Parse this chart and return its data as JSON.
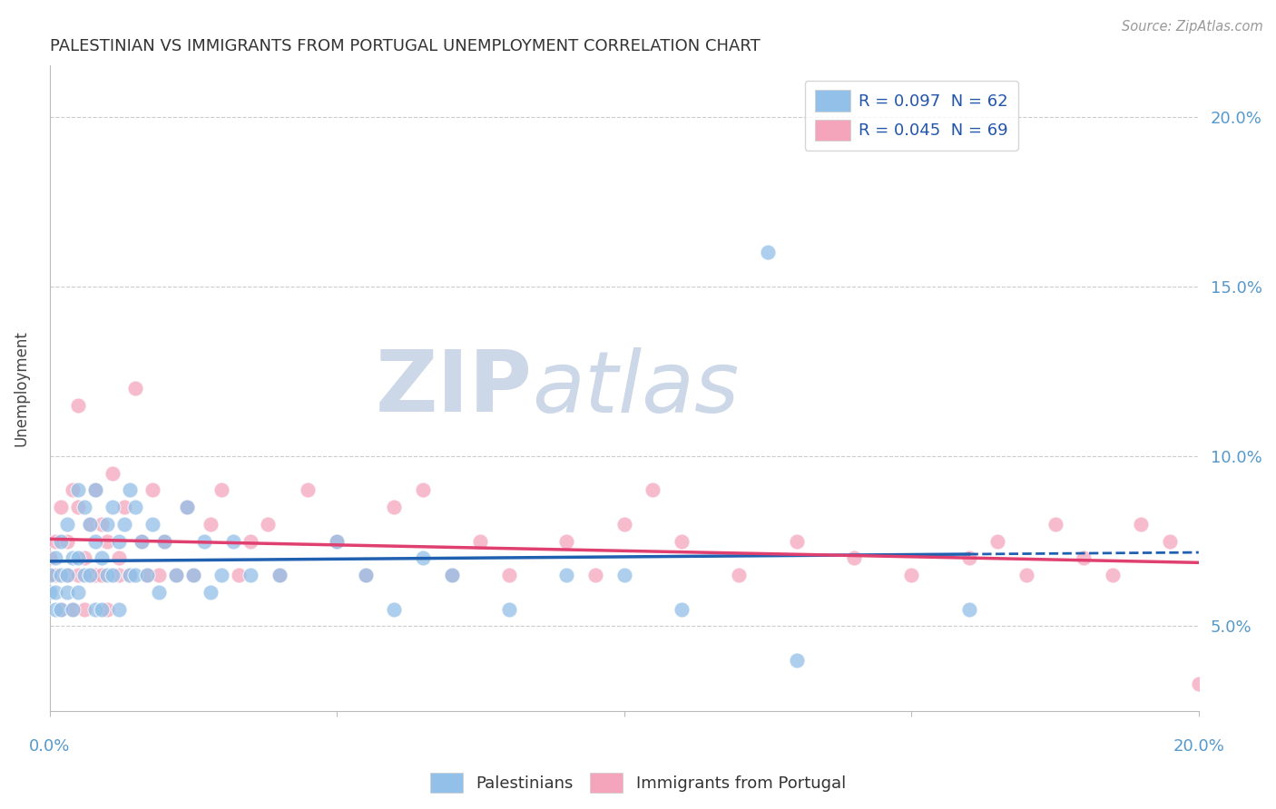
{
  "title": "PALESTINIAN VS IMMIGRANTS FROM PORTUGAL UNEMPLOYMENT CORRELATION CHART",
  "source_text": "Source: ZipAtlas.com",
  "ylabel": "Unemployment",
  "ytick_labels": [
    "5.0%",
    "10.0%",
    "15.0%",
    "20.0%"
  ],
  "ytick_values": [
    0.05,
    0.1,
    0.15,
    0.2
  ],
  "xlim": [
    0.0,
    0.2
  ],
  "ylim": [
    0.025,
    0.215
  ],
  "legend_entry1": "R = 0.097  N = 62",
  "legend_entry2": "R = 0.045  N = 69",
  "legend_color1": "#92c0e8",
  "legend_color2": "#f4a5bb",
  "scatter_color1": "#92c0e8",
  "scatter_color2": "#f4a5bb",
  "trend_color1": "#2060b0",
  "trend_color2": "#e04070",
  "watermark": "ZIPatlas",
  "watermark_color": "#ccd8e8",
  "background_color": "#ffffff",
  "grid_color": "#cccccc",
  "palestinians_x": [
    0.0,
    0.0,
    0.001,
    0.001,
    0.001,
    0.002,
    0.002,
    0.002,
    0.003,
    0.003,
    0.003,
    0.004,
    0.004,
    0.005,
    0.005,
    0.005,
    0.006,
    0.006,
    0.007,
    0.007,
    0.008,
    0.008,
    0.008,
    0.009,
    0.009,
    0.01,
    0.01,
    0.011,
    0.011,
    0.012,
    0.012,
    0.013,
    0.014,
    0.014,
    0.015,
    0.015,
    0.016,
    0.017,
    0.018,
    0.019,
    0.02,
    0.022,
    0.024,
    0.025,
    0.027,
    0.028,
    0.03,
    0.032,
    0.035,
    0.04,
    0.05,
    0.055,
    0.06,
    0.065,
    0.07,
    0.08,
    0.09,
    0.1,
    0.11,
    0.125,
    0.13,
    0.16
  ],
  "palestinians_y": [
    0.065,
    0.06,
    0.07,
    0.055,
    0.06,
    0.075,
    0.065,
    0.055,
    0.08,
    0.065,
    0.06,
    0.07,
    0.055,
    0.09,
    0.07,
    0.06,
    0.085,
    0.065,
    0.08,
    0.065,
    0.09,
    0.075,
    0.055,
    0.07,
    0.055,
    0.08,
    0.065,
    0.085,
    0.065,
    0.075,
    0.055,
    0.08,
    0.09,
    0.065,
    0.085,
    0.065,
    0.075,
    0.065,
    0.08,
    0.06,
    0.075,
    0.065,
    0.085,
    0.065,
    0.075,
    0.06,
    0.065,
    0.075,
    0.065,
    0.065,
    0.075,
    0.065,
    0.055,
    0.07,
    0.065,
    0.055,
    0.065,
    0.065,
    0.055,
    0.16,
    0.04,
    0.055
  ],
  "portugal_x": [
    0.0,
    0.0,
    0.001,
    0.001,
    0.002,
    0.002,
    0.003,
    0.003,
    0.004,
    0.004,
    0.005,
    0.005,
    0.005,
    0.006,
    0.006,
    0.007,
    0.007,
    0.008,
    0.008,
    0.009,
    0.009,
    0.01,
    0.01,
    0.011,
    0.012,
    0.012,
    0.013,
    0.014,
    0.015,
    0.016,
    0.017,
    0.018,
    0.019,
    0.02,
    0.022,
    0.024,
    0.025,
    0.028,
    0.03,
    0.033,
    0.035,
    0.038,
    0.04,
    0.045,
    0.05,
    0.055,
    0.06,
    0.065,
    0.07,
    0.075,
    0.08,
    0.09,
    0.095,
    0.1,
    0.105,
    0.11,
    0.12,
    0.13,
    0.14,
    0.15,
    0.16,
    0.165,
    0.17,
    0.175,
    0.18,
    0.185,
    0.19,
    0.195,
    0.2
  ],
  "portugal_y": [
    0.065,
    0.07,
    0.065,
    0.075,
    0.085,
    0.055,
    0.075,
    0.065,
    0.09,
    0.055,
    0.085,
    0.065,
    0.115,
    0.07,
    0.055,
    0.08,
    0.065,
    0.09,
    0.065,
    0.08,
    0.065,
    0.075,
    0.055,
    0.095,
    0.07,
    0.065,
    0.085,
    0.065,
    0.12,
    0.075,
    0.065,
    0.09,
    0.065,
    0.075,
    0.065,
    0.085,
    0.065,
    0.08,
    0.09,
    0.065,
    0.075,
    0.08,
    0.065,
    0.09,
    0.075,
    0.065,
    0.085,
    0.09,
    0.065,
    0.075,
    0.065,
    0.075,
    0.065,
    0.08,
    0.09,
    0.075,
    0.065,
    0.075,
    0.07,
    0.065,
    0.07,
    0.075,
    0.065,
    0.08,
    0.07,
    0.065,
    0.08,
    0.075,
    0.033
  ]
}
